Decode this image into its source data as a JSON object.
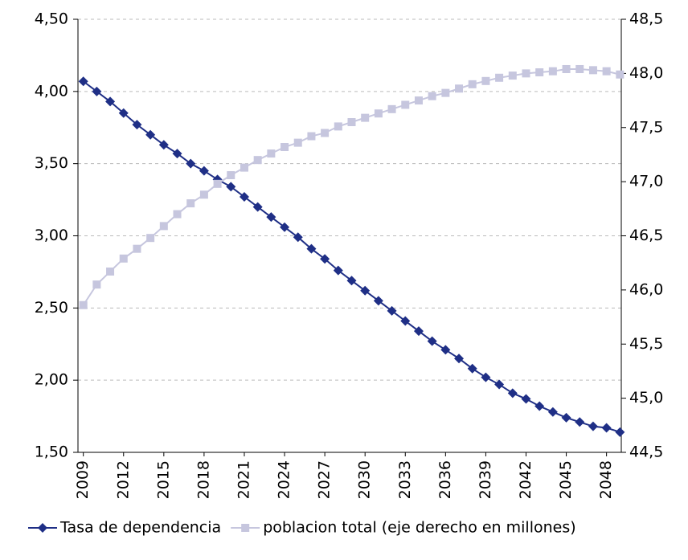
{
  "chart_data": {
    "type": "line",
    "x": [
      2009,
      2010,
      2011,
      2012,
      2013,
      2014,
      2015,
      2016,
      2017,
      2018,
      2019,
      2020,
      2021,
      2022,
      2023,
      2024,
      2025,
      2026,
      2027,
      2028,
      2029,
      2030,
      2031,
      2032,
      2033,
      2034,
      2035,
      2036,
      2037,
      2038,
      2039,
      2040,
      2041,
      2042,
      2043,
      2044,
      2045,
      2046,
      2047,
      2048,
      2049
    ],
    "xlim": [
      2008.6,
      2049.1
    ],
    "xticks": [
      2009,
      2012,
      2015,
      2018,
      2021,
      2024,
      2027,
      2030,
      2033,
      2036,
      2039,
      2042,
      2045,
      2048
    ],
    "ylim": [
      1.5,
      4.5
    ],
    "yticks": [
      {
        "value": 1.5,
        "label": "1,50"
      },
      {
        "value": 2,
        "label": "2,00"
      },
      {
        "value": 2.5,
        "label": "2,50"
      },
      {
        "value": 3,
        "label": "3,00"
      },
      {
        "value": 3.5,
        "label": "3,50"
      },
      {
        "value": 4,
        "label": "4,00"
      },
      {
        "value": 4.5,
        "label": "4,50"
      }
    ],
    "y2lim": [
      44.5,
      48.5
    ],
    "y2ticks": [
      {
        "value": 44.5,
        "label": "44,5"
      },
      {
        "value": 45,
        "label": "45,0"
      },
      {
        "value": 45.5,
        "label": "45,5"
      },
      {
        "value": 46,
        "label": "46,0"
      },
      {
        "value": 46.5,
        "label": "46,5"
      },
      {
        "value": 47,
        "label": "47,0"
      },
      {
        "value": 47.5,
        "label": "47,5"
      },
      {
        "value": 48,
        "label": "48,0"
      },
      {
        "value": 48.5,
        "label": "48,5"
      }
    ],
    "grid": true,
    "legend": "bottom",
    "series": [
      {
        "name": "Tasa de dependencia",
        "color": "#1f2f86",
        "marker": "diamond",
        "values": [
          4.07,
          4.0,
          3.93,
          3.85,
          3.77,
          3.7,
          3.63,
          3.57,
          3.5,
          3.45,
          3.39,
          3.34,
          3.27,
          3.2,
          3.13,
          3.06,
          2.99,
          2.91,
          2.84,
          2.76,
          2.69,
          2.62,
          2.55,
          2.48,
          2.41,
          2.34,
          2.27,
          2.21,
          2.15,
          2.08,
          2.02,
          1.97,
          1.91,
          1.87,
          1.82,
          1.78,
          1.74,
          1.71,
          1.68,
          1.67,
          1.64
        ]
      },
      {
        "name": "poblacion total (eje derecho en millones)",
        "color": "#c6c6de",
        "marker": "square",
        "axis": "y2",
        "values": [
          45.86,
          46.05,
          46.17,
          46.29,
          46.38,
          46.48,
          46.59,
          46.7,
          46.8,
          46.88,
          46.98,
          47.06,
          47.13,
          47.2,
          47.26,
          47.32,
          47.36,
          47.42,
          47.45,
          47.51,
          47.55,
          47.59,
          47.63,
          47.67,
          47.71,
          47.75,
          47.79,
          47.82,
          47.86,
          47.9,
          47.93,
          47.96,
          47.98,
          48.0,
          48.01,
          48.02,
          48.04,
          48.04,
          48.03,
          48.02,
          47.99
        ]
      }
    ]
  }
}
